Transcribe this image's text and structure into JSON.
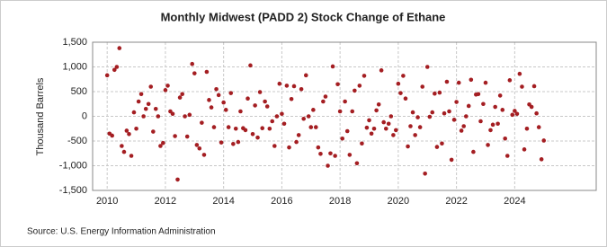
{
  "chart_data": {
    "type": "scatter",
    "title": "Monthly Midwest (PADD 2) Stock Change of Ethane",
    "y_label": "Thousand Barrels",
    "source": "Source: U.S. Energy Information Administration",
    "xlim": [
      2009.5,
      2026.8
    ],
    "xticks": [
      2010,
      2012,
      2014,
      2016,
      2018,
      2020,
      2022,
      2024
    ],
    "ylim": [
      -1500,
      1500
    ],
    "yticks": [
      {
        "value": 1500,
        "label": "1,500"
      },
      {
        "value": 1000,
        "label": "1,000"
      },
      500,
      0,
      -500,
      {
        "value": -1000,
        "label": "-1,000"
      },
      {
        "value": -1500,
        "label": "-1,500"
      }
    ],
    "grid": true,
    "color": "#a41e22",
    "x": [
      2010,
      2010.08,
      2010.17,
      2010.25,
      2010.33,
      2010.42,
      2010.5,
      2010.58,
      2010.67,
      2010.75,
      2010.83,
      2010.92,
      2011,
      2011.08,
      2011.17,
      2011.25,
      2011.33,
      2011.42,
      2011.5,
      2011.58,
      2011.67,
      2011.75,
      2011.83,
      2011.92,
      2012,
      2012.08,
      2012.17,
      2012.25,
      2012.33,
      2012.42,
      2012.5,
      2012.58,
      2012.67,
      2012.75,
      2012.83,
      2012.92,
      2013,
      2013.08,
      2013.17,
      2013.25,
      2013.33,
      2013.42,
      2013.5,
      2013.58,
      2013.67,
      2013.75,
      2013.83,
      2013.92,
      2014,
      2014.08,
      2014.17,
      2014.25,
      2014.33,
      2014.42,
      2014.5,
      2014.58,
      2014.67,
      2014.75,
      2014.83,
      2014.92,
      2015,
      2015.08,
      2015.17,
      2015.25,
      2015.33,
      2015.42,
      2015.5,
      2015.58,
      2015.67,
      2015.75,
      2015.83,
      2015.92,
      2016,
      2016.08,
      2016.17,
      2016.25,
      2016.33,
      2016.42,
      2016.5,
      2016.58,
      2016.67,
      2016.75,
      2016.83,
      2016.92,
      2017,
      2017.08,
      2017.17,
      2017.25,
      2017.33,
      2017.42,
      2017.5,
      2017.58,
      2017.67,
      2017.75,
      2017.83,
      2017.92,
      2018,
      2018.08,
      2018.17,
      2018.25,
      2018.33,
      2018.42,
      2018.5,
      2018.58,
      2018.67,
      2018.75,
      2018.83,
      2018.92,
      2019,
      2019.08,
      2019.17,
      2019.25,
      2019.33,
      2019.42,
      2019.5,
      2019.58,
      2019.67,
      2019.75,
      2019.83,
      2019.92,
      2020,
      2020.08,
      2020.17,
      2020.25,
      2020.33,
      2020.42,
      2020.5,
      2020.58,
      2020.67,
      2020.75,
      2020.83,
      2020.92,
      2021,
      2021.08,
      2021.17,
      2021.25,
      2021.33,
      2021.42,
      2021.5,
      2021.58,
      2021.67,
      2021.75,
      2021.83,
      2021.92,
      2022,
      2022.08,
      2022.17,
      2022.25,
      2022.33,
      2022.42,
      2022.5,
      2022.58,
      2022.67,
      2022.75,
      2022.83,
      2022.92,
      2023,
      2023.08,
      2023.17,
      2023.25,
      2023.33,
      2023.42,
      2023.5,
      2023.58,
      2023.67,
      2023.75,
      2023.83,
      2023.92,
      2024,
      2024.08,
      2024.17,
      2024.25,
      2024.33,
      2024.42,
      2024.5,
      2024.58,
      2024.67,
      2024.75,
      2024.83,
      2024.92,
      2025
    ],
    "values": [
      830,
      -350,
      -390,
      940,
      1000,
      1380,
      -600,
      -720,
      -290,
      -360,
      -800,
      80,
      -250,
      300,
      450,
      0,
      150,
      250,
      600,
      -310,
      150,
      0,
      -600,
      -540,
      530,
      620,
      100,
      50,
      -400,
      -1280,
      380,
      450,
      0,
      -410,
      30,
      1060,
      870,
      -580,
      -650,
      -130,
      -780,
      900,
      330,
      180,
      -220,
      550,
      430,
      -530,
      280,
      130,
      -220,
      470,
      -560,
      -250,
      -520,
      100,
      -240,
      -280,
      360,
      1030,
      -360,
      220,
      -430,
      490,
      -240,
      300,
      200,
      -250,
      -100,
      -600,
      0,
      660,
      50,
      -150,
      620,
      -630,
      350,
      610,
      -520,
      -380,
      550,
      -50,
      830,
      0,
      -220,
      130,
      -220,
      -630,
      -760,
      300,
      400,
      -1000,
      -750,
      1010,
      -800,
      650,
      100,
      -450,
      300,
      -300,
      -780,
      100,
      520,
      -950,
      620,
      -550,
      820,
      -230,
      -80,
      -350,
      -250,
      120,
      240,
      930,
      -120,
      -250,
      -150,
      0,
      -380,
      -280,
      660,
      470,
      820,
      360,
      -610,
      -200,
      80,
      -380,
      -20,
      -220,
      600,
      -1160,
      1000,
      -10,
      80,
      460,
      -620,
      480,
      -550,
      60,
      700,
      100,
      -880,
      -70,
      290,
      680,
      -290,
      -200,
      0,
      210,
      740,
      -720,
      440,
      450,
      -100,
      250,
      680,
      -580,
      -280,
      -170,
      190,
      -150,
      420,
      130,
      -450,
      -800,
      730,
      30,
      110,
      50,
      860,
      600,
      -670,
      -250,
      240,
      190,
      610,
      60,
      -220,
      -870,
      -490
    ]
  }
}
